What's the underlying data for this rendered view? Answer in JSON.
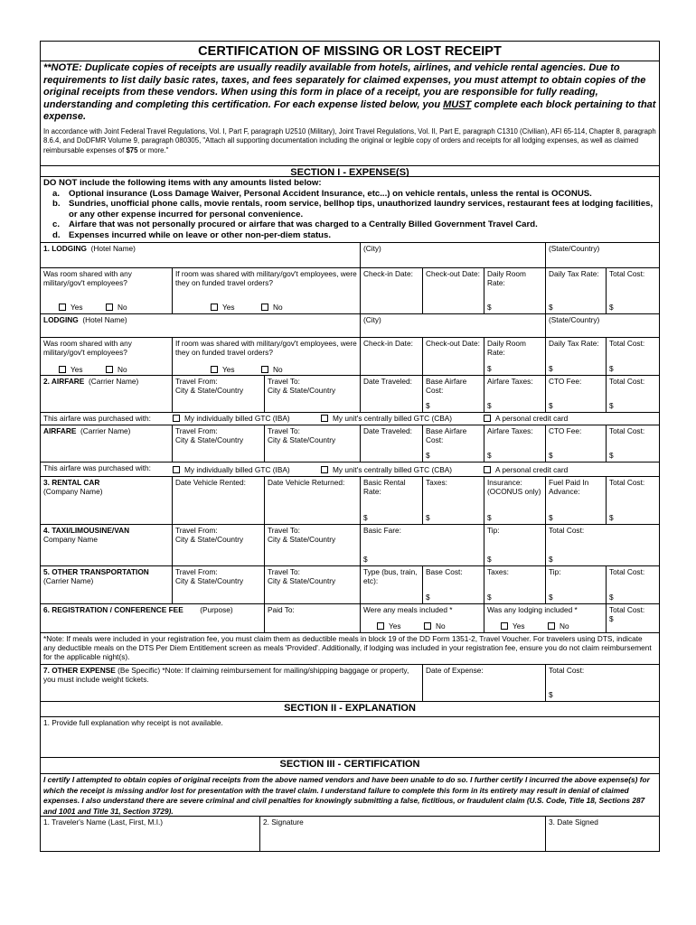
{
  "header": {
    "title": "CERTIFICATION OF MISSING OR LOST RECEIPT",
    "note_start": "**NOTE:  Duplicate copies of receipts are usually readily available from hotels, airlines, and vehicle rental agencies. Due to requirements to list daily basic rates, taxes, and fees separately for claimed expenses, you must attempt to obtain copies of the original receipts from these vendors.  When using this form in place of a receipt, you are responsible for fully reading, understanding and completing this certification.  For each expense listed below, you ",
    "note_must": "MUST",
    "note_end": " complete each block pertaining to that expense.",
    "regs_start": "In accordance with Joint Federal Travel Regulations, Vol. I, Part F, paragraph U2510 (Military), Joint Travel Regulations, Vol. II, Part E, paragraph C1310 (Civilian), AFI 65-114, Chapter 8, paragraph 8.6.4, and DoDFMR Volume 9, paragraph 080305, \"Attach all supporting documentation including the original or legible copy of orders and receipts for all lodging expenses, as well as claimed reimbursable expenses of ",
    "regs_amount": "$75",
    "regs_end": " or more.\""
  },
  "section1": {
    "heading": "SECTION I - EXPENSE(S)",
    "intro": "DO NOT include the following items with any amounts listed below:",
    "items": [
      {
        "letter": "a.",
        "text": "Optional insurance (Loss Damage Waiver, Personal Accident Insurance, etc...) on vehicle rentals, unless the rental is OCONUS."
      },
      {
        "letter": "b.",
        "text": "Sundries, unofficial phone calls, movie rentals, room service, bellhop tips, unauthorized laundry services, restaurant fees at lodging facilities, or any other expense incurred for personal convenience."
      },
      {
        "letter": "c.",
        "text": "Airfare that was not personally procured or airfare that was charged to a Centrally Billed Government Travel Card."
      },
      {
        "letter": "d.",
        "text": "Expenses incurred while on leave or other non-per-diem status."
      }
    ]
  },
  "common": {
    "currency": "$",
    "yes": "Yes",
    "no": "No",
    "total_cost": "Total Cost:",
    "travel_from": "Travel From:",
    "travel_to": "Travel To:",
    "city_state_country": "City & State/Country"
  },
  "lodging": {
    "label1": "1. LODGING",
    "label2": "LODGING",
    "hotel_name": "(Hotel Name)",
    "city": "(City)",
    "state_country": "(State/Country)",
    "shared_q": "Was room shared with any military/gov't employees?",
    "funded_q": "If room was shared with military/gov't employees, were they on funded travel orders?",
    "check_in": "Check-in Date:",
    "check_out": "Check-out Date:",
    "daily_room_rate": "Daily Room Rate:",
    "daily_tax_rate": "Daily Tax Rate:"
  },
  "airfare": {
    "label1": "2. AIRFARE",
    "label2": "AIRFARE",
    "carrier_name": "(Carrier Name)",
    "date_traveled": "Date Traveled:",
    "base_cost": "Base Airfare Cost:",
    "taxes": "Airfare Taxes:",
    "cto_fee": "CTO Fee:",
    "purchased_with": "This airfare was purchased with:",
    "options": [
      "My individually billed GTC (IBA)",
      "My unit's centrally billed GTC (CBA)",
      "A personal credit card"
    ]
  },
  "rental_car": {
    "label": "3. RENTAL CAR",
    "company_name": "(Company Name)",
    "date_rented": "Date Vehicle Rented:",
    "date_returned": "Date Vehicle Returned:",
    "basic_rate": "Basic Rental Rate:",
    "taxes": "Taxes:",
    "insurance": "Insurance: (OCONUS only)",
    "fuel": "Fuel Paid In Advance:"
  },
  "taxi": {
    "label": "4. TAXI/LIMOUSINE/VAN",
    "company_name": "Company Name",
    "basic_fare": "Basic Fare:",
    "tip": "Tip:"
  },
  "other_transport": {
    "label": "5. OTHER TRANSPORTATION",
    "carrier_name": "(Carrier Name)",
    "type": "Type (bus, train, etc):",
    "base_cost": "Base Cost:",
    "taxes": "Taxes:",
    "tip": "Tip:"
  },
  "registration": {
    "label": "6. REGISTRATION / CONFERENCE FEE",
    "purpose": "(Purpose)",
    "paid_to": "Paid To:",
    "meals_q": "Were any meals included *",
    "lodging_q": "Was any lodging included *",
    "note": "*Note:  If meals were included in your registration fee, you must claim them as deductible meals in block 19 of the DD Form 1351-2, Travel Voucher. For travelers using DTS, indicate any deductible meals on the DTS Per Diem Entitlement screen as meals 'Provided'. Additionally, if lodging was included in your registration fee, ensure you do not claim reimbursement for the applicable night(s)."
  },
  "other_expense": {
    "label": "7. OTHER EXPENSE",
    "specific": " (Be Specific)",
    "note": "   *Note:  If claiming reimbursement for mailing/shipping baggage or property, you must include weight tickets.",
    "date": "Date of Expense:"
  },
  "section2": {
    "heading": "SECTION II - EXPLANATION",
    "prompt": "1.  Provide full explanation why receipt is not available."
  },
  "section3": {
    "heading": "SECTION III - CERTIFICATION",
    "text": "I certify I attempted to obtain copies of original receipts from the above named vendors and have been unable to do so.  I further certify I incurred the above expense(s) for which the receipt is missing and/or lost for presentation with the travel claim.  I understand failure to complete this form in its entirety may result in denial of claimed expenses.  I also understand there are severe criminal and civil penalties for knowingly submitting a false, fictitious, or fraudulent claim (U.S. Code, Title 18, Sections 287 and 1001 and Title 31, Section 3729).",
    "travelers_name": "1.  Traveler's Name",
    "name_format": "     (Last, First, M.I.)",
    "signature": "2.  Signature",
    "date_signed": "3.  Date Signed"
  }
}
